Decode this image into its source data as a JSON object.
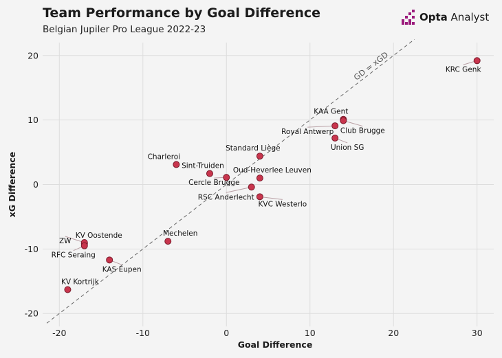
{
  "header": {
    "title": "Team Performance by Goal Difference",
    "subtitle": "Belgian Jupiler Pro League 2022-23",
    "logo_bold": "Opta",
    "logo_rest": " Analyst"
  },
  "colors": {
    "background": "#f4f4f4",
    "grid": "#dddddd",
    "point_fill": "#c8354d",
    "point_stroke": "#7a1c2c",
    "reference_line": "#666666",
    "logo_accent": "#9b1b7c"
  },
  "chart_data": {
    "type": "scatter",
    "xlabel": "Goal Difference",
    "ylabel": "xG Difference",
    "xlim": [
      -22,
      32
    ],
    "ylim": [
      -22,
      22
    ],
    "xticks": [
      -20,
      -10,
      0,
      10,
      20,
      30
    ],
    "yticks": [
      -20,
      -10,
      0,
      10,
      20
    ],
    "xtick_labels": [
      "-20",
      "-10",
      "0",
      "10",
      "20",
      "30"
    ],
    "ytick_labels": [
      "-20",
      "-10",
      "0",
      "10",
      "20"
    ],
    "grid": true,
    "reference_line": {
      "label": "GD = xGD",
      "slope": 1,
      "intercept": 0
    },
    "points": [
      {
        "name": "KRC Genk",
        "x": 30,
        "y": 19.2
      },
      {
        "name": "KAA Gent",
        "x": 14,
        "y": 10.1
      },
      {
        "name": "Club Brugge",
        "x": 14,
        "y": 9.9
      },
      {
        "name": "Royal Antwerp",
        "x": 13,
        "y": 9.1
      },
      {
        "name": "Union SG",
        "x": 13,
        "y": 7.2
      },
      {
        "name": "Standard Liège",
        "x": 4,
        "y": 4.4
      },
      {
        "name": "Charleroi",
        "x": -6,
        "y": 3.1
      },
      {
        "name": "Sint-Truiden",
        "x": -2,
        "y": 1.7
      },
      {
        "name": "Oud-Heverlee Leuven",
        "x": 4,
        "y": 1.0
      },
      {
        "name": "Cercle Brugge",
        "x": 0,
        "y": 1.1
      },
      {
        "name": "RSC Anderlecht",
        "x": 3,
        "y": -0.4
      },
      {
        "name": "KVC Westerlo",
        "x": 4,
        "y": -1.9
      },
      {
        "name": "KV Oostende",
        "x": -17,
        "y": -9.2
      },
      {
        "name": "ZW",
        "x": -17,
        "y": -9.0
      },
      {
        "name": "RFC Seraing",
        "x": -17,
        "y": -9.5
      },
      {
        "name": "Mechelen",
        "x": -7,
        "y": -8.8
      },
      {
        "name": "KAS Eupen",
        "x": -14,
        "y": -11.7
      },
      {
        "name": "KV Kortrijk",
        "x": -19,
        "y": -16.3
      }
    ]
  }
}
